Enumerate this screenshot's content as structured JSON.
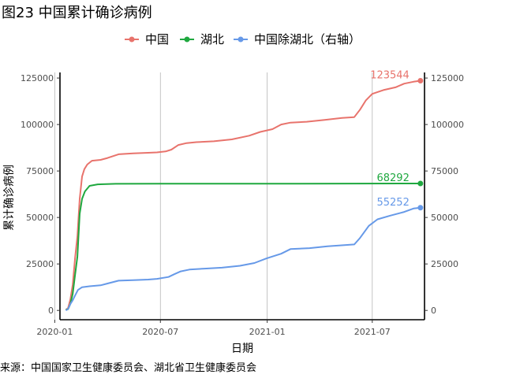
{
  "title": "图23 中国累计确诊病例",
  "source": "来源：中国国家卫生健康委员会、湖北省卫生健康委员会",
  "chart_data": {
    "type": "line",
    "xlabel": "日期",
    "ylabel": "累计确诊病例",
    "x_axis_type": "date",
    "xlim": [
      "2020-01-10",
      "2021-09-29"
    ],
    "ylim_left": [
      -5000,
      128000
    ],
    "ylim_right": [
      -5000,
      128000
    ],
    "x_ticks": [
      "2020-01",
      "2020-07",
      "2021-01",
      "2021-07"
    ],
    "x_tick_dates": [
      "2020-01-01",
      "2020-07-01",
      "2021-01-01",
      "2021-07-01"
    ],
    "y_ticks_left": [
      0,
      25000,
      50000,
      75000,
      100000,
      125000
    ],
    "y_ticks_right": [
      0,
      25000,
      50000,
      75000,
      100000,
      125000
    ],
    "grid": "vertical",
    "legend_position": "top",
    "series": [
      {
        "name": "中国",
        "color": "#E8736C",
        "axis": "left",
        "end_label": "123544",
        "points": [
          [
            "2020-01-20",
            300
          ],
          [
            "2020-01-24",
            1300
          ],
          [
            "2020-01-28",
            6000
          ],
          [
            "2020-02-01",
            14000
          ],
          [
            "2020-02-05",
            28000
          ],
          [
            "2020-02-09",
            40000
          ],
          [
            "2020-02-13",
            60000
          ],
          [
            "2020-02-17",
            72000
          ],
          [
            "2020-02-21",
            76000
          ],
          [
            "2020-02-26",
            78500
          ],
          [
            "2020-03-05",
            80500
          ],
          [
            "2020-03-20",
            81000
          ],
          [
            "2020-04-01",
            82000
          ],
          [
            "2020-04-20",
            84000
          ],
          [
            "2020-05-15",
            84500
          ],
          [
            "2020-06-10",
            84800
          ],
          [
            "2020-06-25",
            85000
          ],
          [
            "2020-07-10",
            85500
          ],
          [
            "2020-07-20",
            86500
          ],
          [
            "2020-08-01",
            89000
          ],
          [
            "2020-08-15",
            90000
          ],
          [
            "2020-09-01",
            90500
          ],
          [
            "2020-10-01",
            91000
          ],
          [
            "2020-11-01",
            92000
          ],
          [
            "2020-12-01",
            94000
          ],
          [
            "2020-12-20",
            96000
          ],
          [
            "2021-01-10",
            97500
          ],
          [
            "2021-01-25",
            100000
          ],
          [
            "2021-02-10",
            101000
          ],
          [
            "2021-03-10",
            101500
          ],
          [
            "2021-04-10",
            102500
          ],
          [
            "2021-05-10",
            103500
          ],
          [
            "2021-05-31",
            104000
          ],
          [
            "2021-06-10",
            108000
          ],
          [
            "2021-06-20",
            113000
          ],
          [
            "2021-07-01",
            116500
          ],
          [
            "2021-07-20",
            118500
          ],
          [
            "2021-08-10",
            120000
          ],
          [
            "2021-08-25",
            122000
          ],
          [
            "2021-09-10",
            123000
          ],
          [
            "2021-09-22",
            123544
          ]
        ]
      },
      {
        "name": "湖北",
        "color": "#1FA83F",
        "axis": "left",
        "end_label": "68292",
        "points": [
          [
            "2020-01-20",
            300
          ],
          [
            "2020-01-24",
            700
          ],
          [
            "2020-01-28",
            3500
          ],
          [
            "2020-02-01",
            9000
          ],
          [
            "2020-02-05",
            19000
          ],
          [
            "2020-02-09",
            29000
          ],
          [
            "2020-02-13",
            52000
          ],
          [
            "2020-02-17",
            60000
          ],
          [
            "2020-02-22",
            64000
          ],
          [
            "2020-03-01",
            67000
          ],
          [
            "2020-03-15",
            67800
          ],
          [
            "2020-04-15",
            68100
          ],
          [
            "2020-07-01",
            68135
          ],
          [
            "2021-01-01",
            68150
          ],
          [
            "2021-09-22",
            68292
          ]
        ]
      },
      {
        "name": "中国除湖北（右轴）",
        "color": "#6699E8",
        "axis": "right",
        "end_label": "55252",
        "points": [
          [
            "2020-01-20",
            0
          ],
          [
            "2020-01-24",
            800
          ],
          [
            "2020-01-28",
            3500
          ],
          [
            "2020-02-01",
            5500
          ],
          [
            "2020-02-05",
            8000
          ],
          [
            "2020-02-10",
            11000
          ],
          [
            "2020-02-17",
            12500
          ],
          [
            "2020-03-01",
            13000
          ],
          [
            "2020-03-20",
            13500
          ],
          [
            "2020-04-01",
            14500
          ],
          [
            "2020-04-20",
            16000
          ],
          [
            "2020-05-15",
            16300
          ],
          [
            "2020-06-10",
            16600
          ],
          [
            "2020-06-25",
            17000
          ],
          [
            "2020-07-15",
            18000
          ],
          [
            "2020-07-25",
            19500
          ],
          [
            "2020-08-05",
            21000
          ],
          [
            "2020-08-20",
            22000
          ],
          [
            "2020-09-15",
            22500
          ],
          [
            "2020-10-15",
            23000
          ],
          [
            "2020-11-15",
            24000
          ],
          [
            "2020-12-10",
            25500
          ],
          [
            "2020-12-31",
            28000
          ],
          [
            "2021-01-25",
            30500
          ],
          [
            "2021-02-10",
            33000
          ],
          [
            "2021-03-15",
            33500
          ],
          [
            "2021-04-15",
            34500
          ],
          [
            "2021-05-31",
            35500
          ],
          [
            "2021-06-10",
            39000
          ],
          [
            "2021-06-25",
            45500
          ],
          [
            "2021-07-10",
            49000
          ],
          [
            "2021-08-01",
            51000
          ],
          [
            "2021-08-25",
            53000
          ],
          [
            "2021-09-10",
            54800
          ],
          [
            "2021-09-22",
            55252
          ]
        ]
      }
    ]
  }
}
